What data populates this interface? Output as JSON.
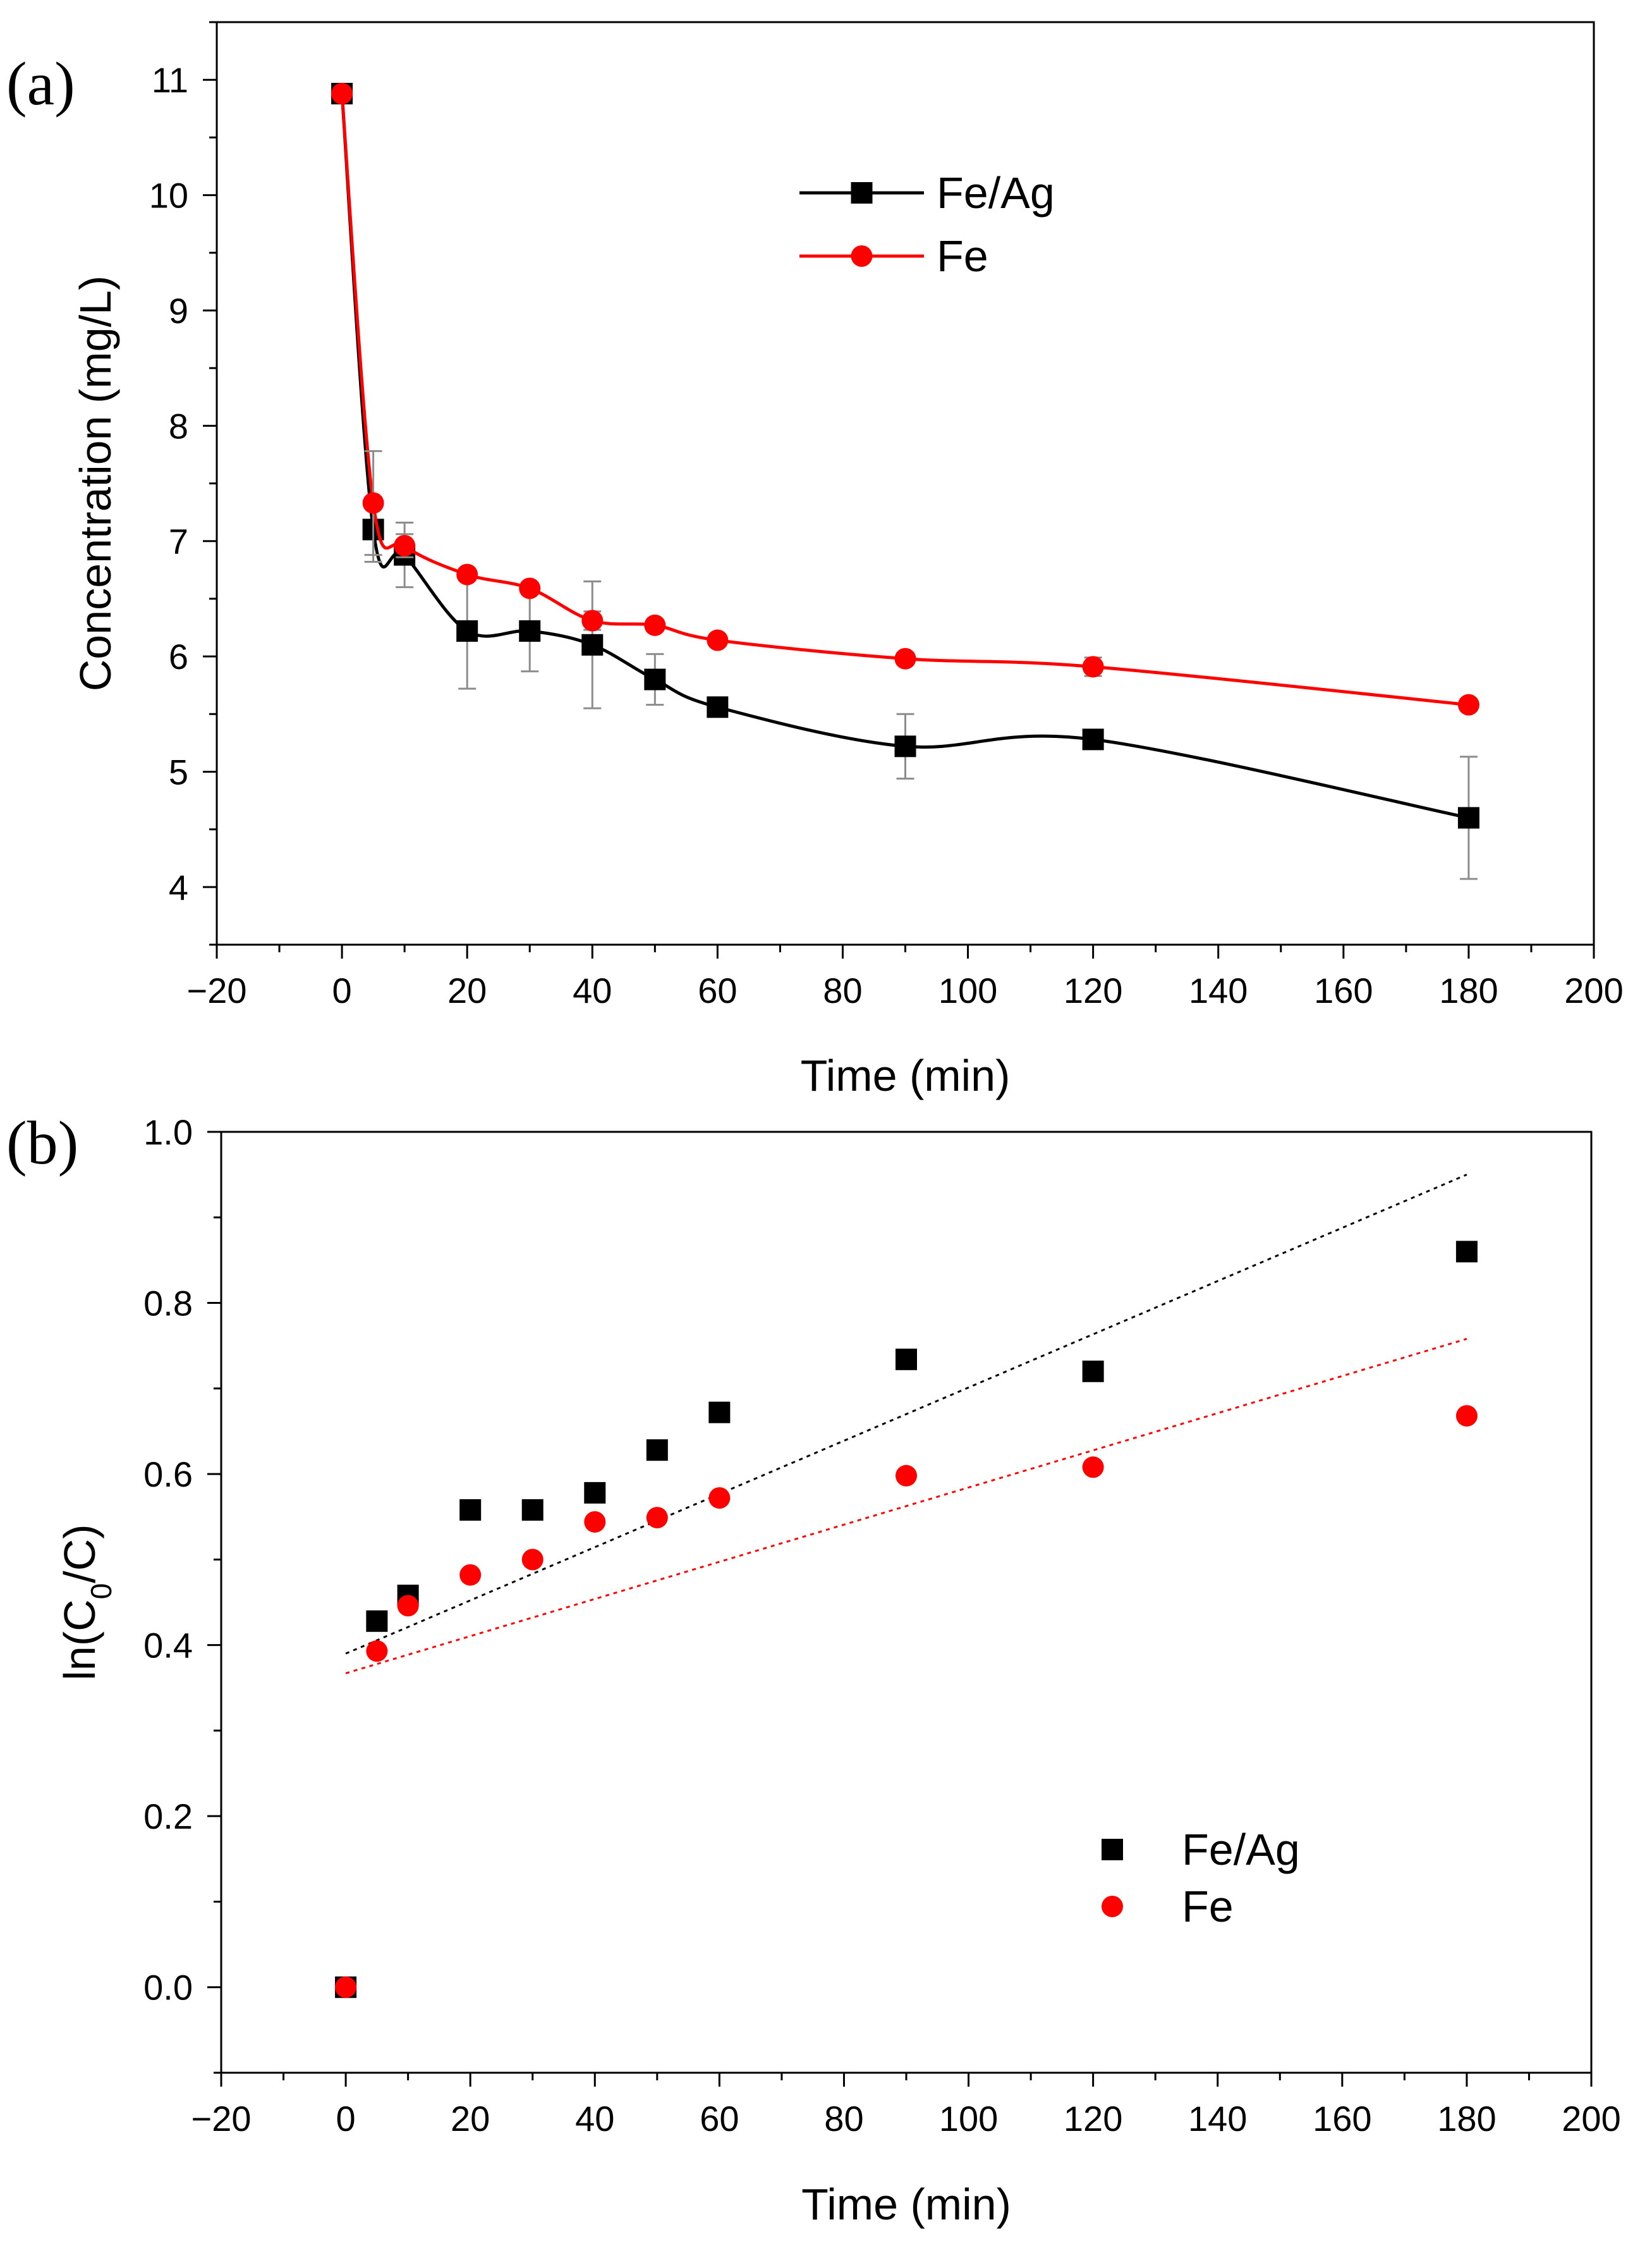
{
  "chart_data": [
    {
      "panel_label": "(a)",
      "type": "line",
      "title": "",
      "xlabel": "Time (min)",
      "ylabel": "Concentration (mg/L)",
      "xlim": [
        -20,
        200
      ],
      "ylim": [
        3.5,
        11.5
      ],
      "xticks": [
        -20,
        0,
        20,
        40,
        60,
        80,
        100,
        120,
        140,
        160,
        180,
        200
      ],
      "xtick_labels": [
        "−20",
        "0",
        "20",
        "40",
        "60",
        "80",
        "100",
        "120",
        "140",
        "160",
        "180",
        "200"
      ],
      "yticks": [
        4,
        5,
        6,
        7,
        8,
        9,
        10,
        11
      ],
      "ytick_labels": [
        "4",
        "5",
        "6",
        "7",
        "8",
        "9",
        "10",
        "11"
      ],
      "grid": false,
      "legend_position": "top-center",
      "series": [
        {
          "name": "Fe/Ag",
          "color": "#000000",
          "marker": "square",
          "x": [
            0,
            5,
            10,
            20,
            30,
            40,
            50,
            60,
            90,
            120,
            180
          ],
          "y": [
            10.88,
            7.1,
            6.88,
            6.22,
            6.22,
            6.1,
            5.8,
            5.56,
            5.22,
            5.28,
            4.6
          ],
          "error": [
            0,
            0.28,
            0.28,
            0.5,
            0.35,
            0.55,
            0.22,
            0.05,
            0.28,
            0.05,
            0.53
          ]
        },
        {
          "name": "Fe",
          "color": "#ff0000",
          "marker": "circle",
          "x": [
            0,
            5,
            10,
            20,
            30,
            40,
            50,
            60,
            90,
            120,
            180
          ],
          "y": [
            10.88,
            7.33,
            6.96,
            6.71,
            6.59,
            6.31,
            6.27,
            6.14,
            5.98,
            5.91,
            5.58
          ],
          "error": [
            0,
            0.45,
            0.1,
            0.05,
            0.05,
            0.08,
            0.05,
            0.05,
            0.05,
            0.08,
            0.05
          ]
        }
      ]
    },
    {
      "panel_label": "(b)",
      "type": "scatter",
      "title": "",
      "xlabel": "Time (min)",
      "ylabel": "ln(C0/C)",
      "ylabel_parts": {
        "pre": "ln(C",
        "sub": "0",
        "post": "/C)"
      },
      "xlim": [
        -20,
        200
      ],
      "ylim": [
        -0.1,
        1.0
      ],
      "xticks": [
        -20,
        0,
        20,
        40,
        60,
        80,
        100,
        120,
        140,
        160,
        180,
        200
      ],
      "xtick_labels": [
        "−20",
        "0",
        "20",
        "40",
        "60",
        "80",
        "100",
        "120",
        "140",
        "160",
        "180",
        "200"
      ],
      "yticks": [
        0.0,
        0.2,
        0.4,
        0.6,
        0.8,
        1.0
      ],
      "ytick_labels": [
        "0.0",
        "0.2",
        "0.4",
        "0.6",
        "0.8",
        "1.0"
      ],
      "grid": false,
      "legend_position": "bottom-right",
      "series": [
        {
          "name": "Fe/Ag",
          "color": "#000000",
          "marker": "square",
          "x": [
            0,
            5,
            10,
            20,
            30,
            40,
            50,
            60,
            90,
            120,
            180
          ],
          "y": [
            0.0,
            0.428,
            0.458,
            0.558,
            0.558,
            0.578,
            0.628,
            0.672,
            0.734,
            0.72,
            0.86
          ]
        },
        {
          "name": "Fe",
          "color": "#ff0000",
          "marker": "circle",
          "x": [
            0,
            5,
            10,
            20,
            30,
            40,
            50,
            60,
            90,
            120,
            180
          ],
          "y": [
            0.0,
            0.393,
            0.446,
            0.482,
            0.5,
            0.544,
            0.549,
            0.572,
            0.598,
            0.608,
            0.668
          ]
        }
      ],
      "fit_lines": [
        {
          "series": "Fe/Ag",
          "color": "#000000",
          "x": [
            0,
            180
          ],
          "y": [
            0.39,
            0.95
          ]
        },
        {
          "series": "Fe",
          "color": "#ff0000",
          "x": [
            0,
            180
          ],
          "y": [
            0.367,
            0.758
          ]
        }
      ]
    }
  ]
}
